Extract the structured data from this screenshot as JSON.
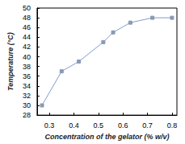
{
  "chart_data": {
    "type": "line",
    "x_label": "Concentration of the gelator (% w/v)",
    "y_label": "Temperature (°C)",
    "x": [
      0.27,
      0.35,
      0.42,
      0.52,
      0.56,
      0.63,
      0.72,
      0.8
    ],
    "values": [
      30,
      37,
      39,
      43,
      45,
      47,
      48,
      48
    ],
    "color": "#7f9ccf",
    "marker": "square",
    "xlim": [
      0.25,
      0.82
    ],
    "xticks": [
      0.3,
      0.4,
      0.5,
      0.6,
      0.7,
      0.8
    ],
    "ylim": [
      28,
      50
    ],
    "yticks": [
      28,
      30,
      32,
      34,
      36,
      38,
      40,
      42,
      44,
      46,
      48,
      50
    ],
    "grid": false
  }
}
